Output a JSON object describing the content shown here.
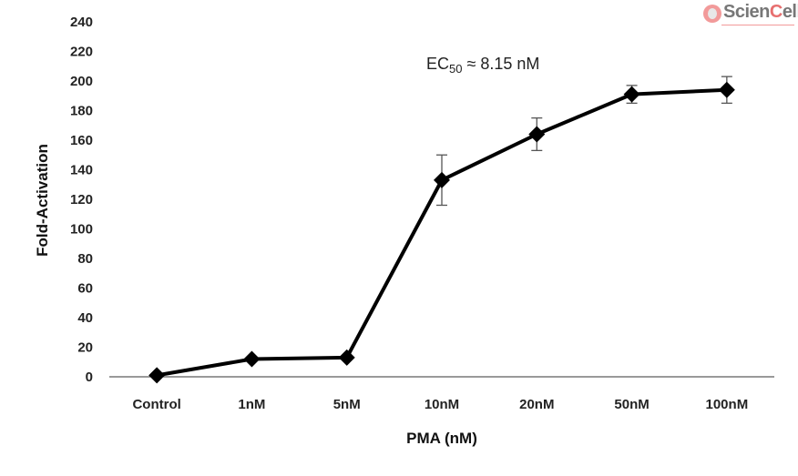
{
  "chart_data": {
    "type": "line",
    "title": "",
    "xlabel": "PMA (nM)",
    "ylabel": "Fold-Activation",
    "categories": [
      "Control",
      "1nM",
      "5nM",
      "10nM",
      "20nM",
      "50nM",
      "100nM"
    ],
    "ylim": [
      0,
      240
    ],
    "yticks": [
      0,
      20,
      40,
      60,
      80,
      100,
      120,
      140,
      160,
      180,
      200,
      220,
      240
    ],
    "grid": false,
    "series": [
      {
        "values": [
          1,
          12,
          13,
          133,
          164,
          191,
          194
        ],
        "error": [
          null,
          null,
          null,
          17,
          11,
          6,
          9
        ],
        "marker": "diamond",
        "color": "#000000"
      }
    ],
    "annotation": {
      "text": "EC",
      "subscript": "50",
      "rest": " ≈ 8.15 nM"
    }
  },
  "logo": {
    "text_a": "Scien",
    "text_b": "C",
    "text_c": "ell",
    "accent": "#e76f6f"
  }
}
